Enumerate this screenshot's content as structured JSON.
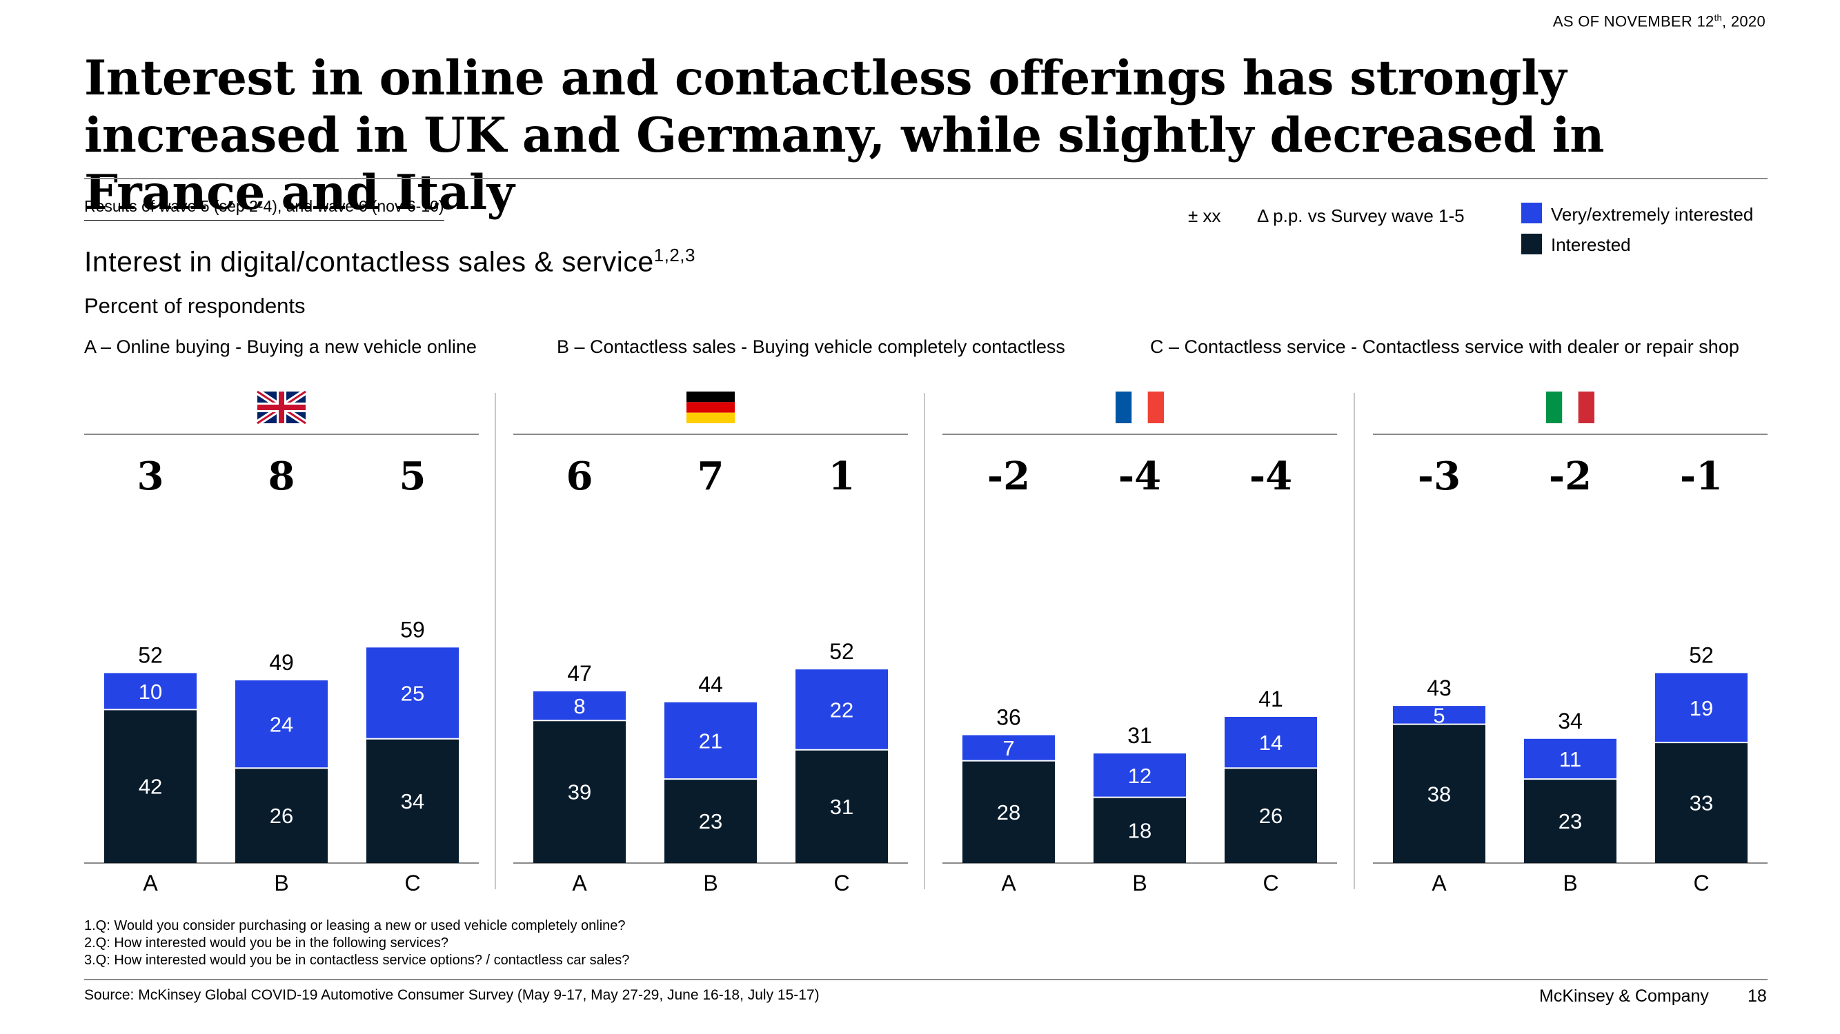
{
  "header": {
    "as_of": "AS OF NOVEMBER 12",
    "as_of_sup": "th",
    "as_of_year": ", 2020",
    "title": "Interest in online and contactless offerings has strongly increased in UK and Germany, while slightly decreased in France and Italy"
  },
  "subheader": {
    "wave_note": "Results of wave 5 (sep 2-4), and wave 6 (nov 6-10)",
    "chart_title": "Interest in digital/contactless sales & service",
    "chart_title_sup": "1,2,3",
    "unit": "Percent of respondents"
  },
  "definitions": {
    "a": "A – Online buying - Buying a new vehicle online",
    "b": "B – Contactless sales - Buying vehicle completely contactless",
    "c": "C – Contactless service - Contactless service with dealer or repair shop"
  },
  "legend": {
    "plus_minus": "± xx",
    "delta": "Δ p.p. vs Survey wave 1-5",
    "very": "Very/extremely interested",
    "interested": "Interested"
  },
  "colors": {
    "very": "#2444e6",
    "interested": "#081c2c",
    "uk_blue": "#012169",
    "uk_red": "#c8102e",
    "de_red": "#dd0000",
    "de_gold": "#ffce00",
    "fr_blue": "#0055a4",
    "fr_red": "#ef4135",
    "it_green": "#009246",
    "it_red": "#ce2b37"
  },
  "chart_data": {
    "type": "bar",
    "stacked": true,
    "categories": [
      "A",
      "B",
      "C"
    ],
    "panels": [
      {
        "flag": "uk-flag-icon",
        "deltas": [
          "3",
          "8",
          "5"
        ],
        "totals": [
          52,
          49,
          59
        ],
        "series": [
          {
            "name": "Interested",
            "values": [
              42,
              26,
              34
            ]
          },
          {
            "name": "Very/extremely interested",
            "values": [
              10,
              24,
              25
            ]
          }
        ]
      },
      {
        "flag": "germany-flag-icon",
        "deltas": [
          "6",
          "7",
          "1"
        ],
        "totals": [
          47,
          44,
          52
        ],
        "series": [
          {
            "name": "Interested",
            "values": [
              39,
              23,
              31
            ]
          },
          {
            "name": "Very/extremely interested",
            "values": [
              8,
              21,
              22
            ]
          }
        ]
      },
      {
        "flag": "france-flag-icon",
        "deltas": [
          "-2",
          "-4",
          "-4"
        ],
        "totals": [
          36,
          31,
          41
        ],
        "series": [
          {
            "name": "Interested",
            "values": [
              28,
              18,
              26
            ]
          },
          {
            "name": "Very/extremely interested",
            "values": [
              7,
              12,
              14
            ]
          }
        ]
      },
      {
        "flag": "italy-flag-icon",
        "deltas": [
          "-3",
          "-2",
          "-1"
        ],
        "totals": [
          43,
          34,
          52
        ],
        "series": [
          {
            "name": "Interested",
            "values": [
              38,
              23,
              33
            ]
          },
          {
            "name": "Very/extremely interested",
            "values": [
              5,
              11,
              19
            ]
          }
        ]
      }
    ]
  },
  "footnotes": [
    "1.Q: Would you consider purchasing or leasing a new or used vehicle completely online?",
    "2.Q: How interested would you be in the following services?",
    "3.Q: How interested would you be in contactless service options? / contactless car sales?"
  ],
  "footer": {
    "source": "Source: McKinsey Global COVID-19 Automotive Consumer Survey (May 9-17, May 27-29, June 16-18, July 15-17)",
    "brand": "McKinsey & Company",
    "page": "18"
  }
}
